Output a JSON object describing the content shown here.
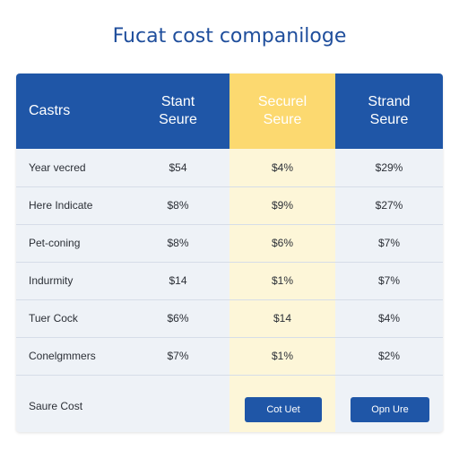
{
  "title": "Fucat cost companiloge",
  "columns": {
    "label": {
      "header": "Castrs"
    },
    "a": {
      "header_line1": "Stant",
      "header_line2": "Seure"
    },
    "b": {
      "header_line1": "Securel",
      "header_line2": "Seure"
    },
    "c": {
      "header_line1": "Strand",
      "header_line2": "Seure"
    }
  },
  "rows": [
    {
      "label": "Year vecred",
      "a": "$54",
      "b": "$4%",
      "c": "$29%"
    },
    {
      "label": "Here Indicate",
      "a": "$8%",
      "b": "$9%",
      "c": "$27%"
    },
    {
      "label": "Pet-coning",
      "a": "$8%",
      "b": "$6%",
      "c": "$7%"
    },
    {
      "label": "Indurmity",
      "a": "$14",
      "b": "$1%",
      "c": "$7%"
    },
    {
      "label": "Tuer Cock",
      "a": "$6%",
      "b": "$14",
      "c": "$4%"
    },
    {
      "label": "Conelgmmers",
      "a": "$7%",
      "b": "$1%",
      "c": "$2%"
    }
  ],
  "footer": {
    "label": "Saure Cost",
    "button_b": "Cot Uet",
    "button_c": "Opn Ure"
  },
  "colors": {
    "header_blue": "#1f56a7",
    "highlight_yellow": "#fcd970",
    "highlight_bg": "#fdf6d8",
    "title_blue": "#1f4e9c"
  }
}
